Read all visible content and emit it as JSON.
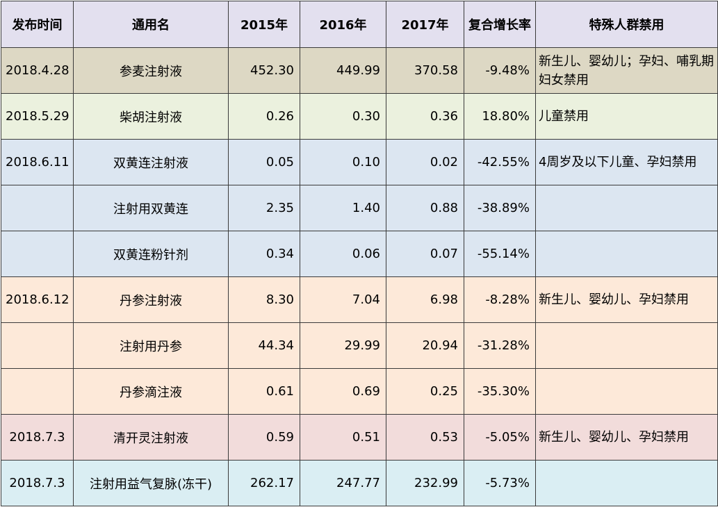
{
  "headers": [
    "发布时间",
    "通用名",
    "2015年",
    "2016年",
    "2017年",
    "复合增长率",
    "特殊人群禁用"
  ],
  "rows": [
    {
      "group": "g1",
      "date": "2018.4.28",
      "name": "参麦注射液",
      "y2015": "452.30",
      "y2016": "449.99",
      "y2017": "370.58",
      "cagr": "-9.48%",
      "note": "新生儿、婴幼儿；孕妇、哺乳期妇女禁用"
    },
    {
      "group": "g2",
      "date": "2018.5.29",
      "name": "柴胡注射液",
      "y2015": "0.26",
      "y2016": "0.30",
      "y2017": "0.36",
      "cagr": "18.80%",
      "note": "儿童禁用"
    },
    {
      "group": "g3",
      "date": "2018.6.11",
      "name": "双黄连注射液",
      "y2015": "0.05",
      "y2016": "0.10",
      "y2017": "0.02",
      "cagr": "-42.55%",
      "note": "4周岁及以下儿童、孕妇禁用"
    },
    {
      "group": "g3",
      "date": "",
      "name": "注射用双黄连",
      "y2015": "2.35",
      "y2016": "1.40",
      "y2017": "0.88",
      "cagr": "-38.89%",
      "note": ""
    },
    {
      "group": "g3",
      "date": "",
      "name": "双黄连粉针剂",
      "y2015": "0.34",
      "y2016": "0.06",
      "y2017": "0.07",
      "cagr": "-55.14%",
      "note": ""
    },
    {
      "group": "g4",
      "date": "2018.6.12",
      "name": "丹参注射液",
      "y2015": "8.30",
      "y2016": "7.04",
      "y2017": "6.98",
      "cagr": "-8.28%",
      "note": "新生儿、婴幼儿、孕妇禁用"
    },
    {
      "group": "g4",
      "date": "",
      "name": "注射用丹参",
      "y2015": "44.34",
      "y2016": "29.99",
      "y2017": "20.94",
      "cagr": "-31.28%",
      "note": ""
    },
    {
      "group": "g4",
      "date": "",
      "name": "丹参滴注液",
      "y2015": "0.61",
      "y2016": "0.69",
      "y2017": "0.25",
      "cagr": "-35.30%",
      "note": ""
    },
    {
      "group": "g5",
      "date": "2018.7.3",
      "name": "清开灵注射液",
      "y2015": "0.59",
      "y2016": "0.51",
      "y2017": "0.53",
      "cagr": "-5.05%",
      "note": "新生儿、婴幼儿、孕妇禁用"
    },
    {
      "group": "g6",
      "date": "2018.7.3",
      "name": "注射用益气复脉(冻干)",
      "y2015": "262.17",
      "y2016": "247.77",
      "y2017": "232.99",
      "cagr": "-5.73%",
      "note": ""
    }
  ]
}
